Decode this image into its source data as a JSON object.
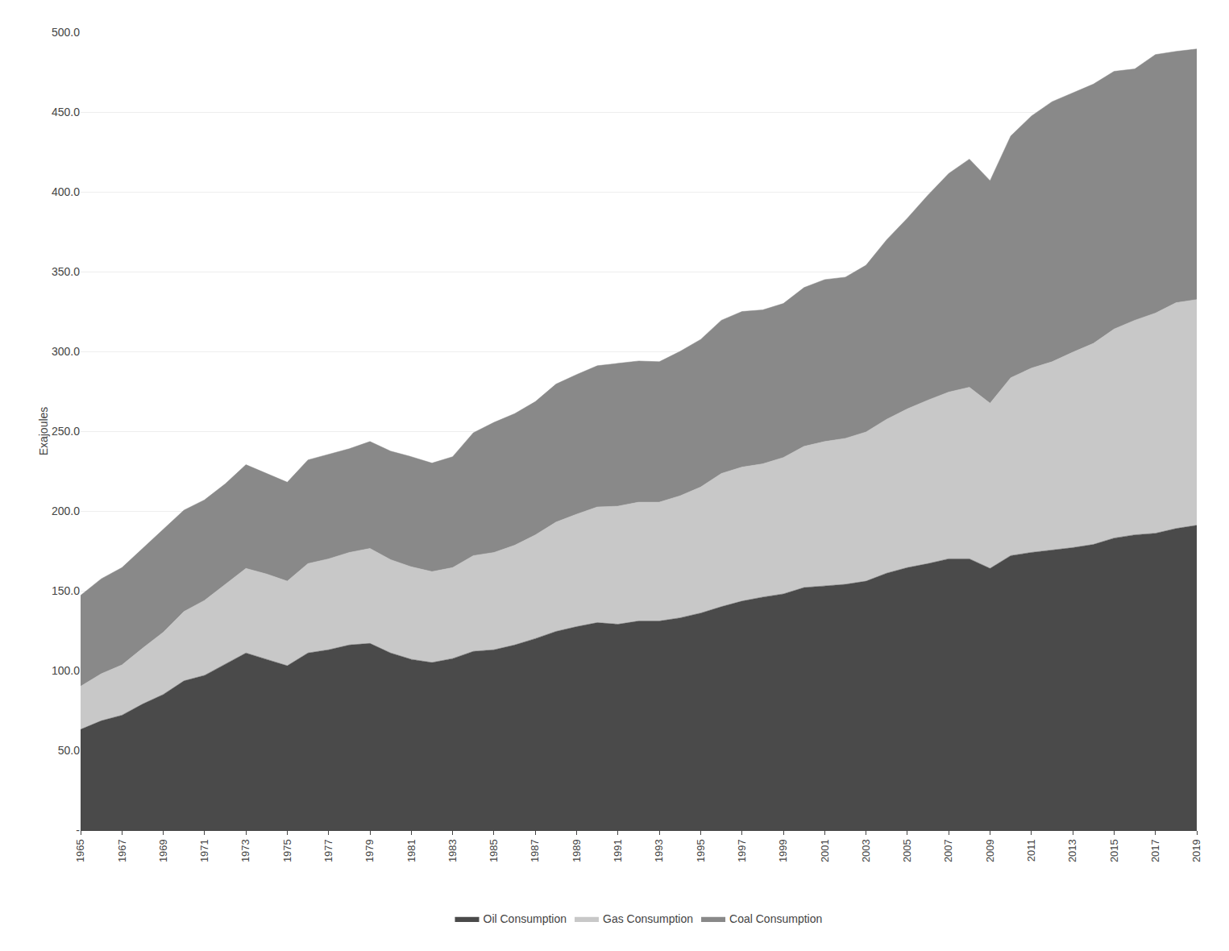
{
  "chart_data": {
    "type": "area",
    "stacked": true,
    "ylabel": "Exajoules",
    "x": [
      1965,
      1966,
      1967,
      1968,
      1969,
      1970,
      1971,
      1972,
      1973,
      1974,
      1975,
      1976,
      1977,
      1978,
      1979,
      1980,
      1981,
      1982,
      1983,
      1984,
      1985,
      1986,
      1987,
      1988,
      1989,
      1990,
      1991,
      1992,
      1993,
      1994,
      1995,
      1996,
      1997,
      1998,
      1999,
      2000,
      2001,
      2002,
      2003,
      2004,
      2005,
      2006,
      2007,
      2008,
      2009,
      2010,
      2011,
      2012,
      2013,
      2014,
      2015,
      2016,
      2017,
      2018,
      2019
    ],
    "series": [
      {
        "name": "Oil Consumption",
        "color": "#4a4a4a",
        "values": [
          63.1,
          68.5,
          72.0,
          79.0,
          85.0,
          93.5,
          97.0,
          104.0,
          111.0,
          107.0,
          103.0,
          111.0,
          113.0,
          116.0,
          117.0,
          111.0,
          107.0,
          105.0,
          107.5,
          112.0,
          113.0,
          116.0,
          120.0,
          124.5,
          127.5,
          130.0,
          129.0,
          131.0,
          131.0,
          133.0,
          136.0,
          140.0,
          143.5,
          146.0,
          148.0,
          152.0,
          153.0,
          154.0,
          156.0,
          161.0,
          164.5,
          167.0,
          170.0,
          170.0,
          164.0,
          172.0,
          174.0,
          175.5,
          177.0,
          179.0,
          183.0,
          185.0,
          186.0,
          189.0,
          191.0
        ]
      },
      {
        "name": "Gas Consumption",
        "color": "#c8c8c8",
        "values": [
          27.0,
          29.5,
          31.5,
          35.0,
          39.0,
          43.5,
          47.0,
          50.0,
          53.0,
          53.5,
          53.0,
          56.0,
          57.0,
          58.0,
          59.5,
          58.5,
          58.0,
          57.0,
          57.0,
          60.0,
          61.0,
          62.5,
          65.0,
          68.5,
          70.5,
          72.5,
          74.0,
          74.5,
          74.5,
          76.5,
          79.0,
          83.5,
          84.0,
          83.5,
          85.5,
          88.5,
          90.5,
          91.5,
          93.5,
          96.5,
          99.5,
          102.5,
          104.5,
          107.5,
          103.5,
          111.5,
          115.5,
          118.0,
          122.5,
          126.0,
          131.0,
          134.5,
          138.0,
          141.5,
          141.5
        ]
      },
      {
        "name": "Coal Consumption",
        "color": "#898989",
        "values": [
          57.0,
          59.5,
          61.0,
          62.5,
          64.0,
          63.5,
          63.0,
          63.0,
          65.0,
          63.0,
          62.0,
          65.0,
          65.5,
          65.0,
          67.0,
          68.0,
          69.0,
          68.0,
          69.5,
          77.0,
          81.5,
          82.5,
          83.5,
          86.5,
          87.5,
          88.5,
          89.5,
          88.5,
          88.0,
          90.5,
          92.5,
          96.0,
          97.5,
          96.5,
          96.5,
          99.5,
          101.5,
          101.0,
          104.5,
          112.5,
          119.5,
          128.5,
          137.0,
          143.0,
          139.5,
          151.5,
          158.0,
          163.0,
          162.5,
          162.5,
          161.5,
          157.5,
          162.0,
          157.5,
          157.0
        ]
      }
    ],
    "xlim": [
      1965,
      2019
    ],
    "xticks": [
      1965,
      1967,
      1969,
      1971,
      1973,
      1975,
      1977,
      1979,
      1981,
      1983,
      1985,
      1987,
      1989,
      1991,
      1993,
      1995,
      1997,
      1999,
      2001,
      2003,
      2005,
      2007,
      2009,
      2011,
      2013,
      2015,
      2017,
      2019
    ],
    "ylim": [
      0,
      500
    ],
    "yticks": [
      {
        "value": 0,
        "label": "-"
      },
      {
        "value": 50,
        "label": "50.0"
      },
      {
        "value": 100,
        "label": "100.0"
      },
      {
        "value": 150,
        "label": "150.0"
      },
      {
        "value": 200,
        "label": "200.0"
      },
      {
        "value": 250,
        "label": "250.0"
      },
      {
        "value": 300,
        "label": "300.0"
      },
      {
        "value": 350,
        "label": "350.0"
      },
      {
        "value": 400,
        "label": "400.0"
      },
      {
        "value": 450,
        "label": "450.0"
      },
      {
        "value": 500,
        "label": "500.0"
      }
    ],
    "grid": "y",
    "legend": "bottom"
  }
}
